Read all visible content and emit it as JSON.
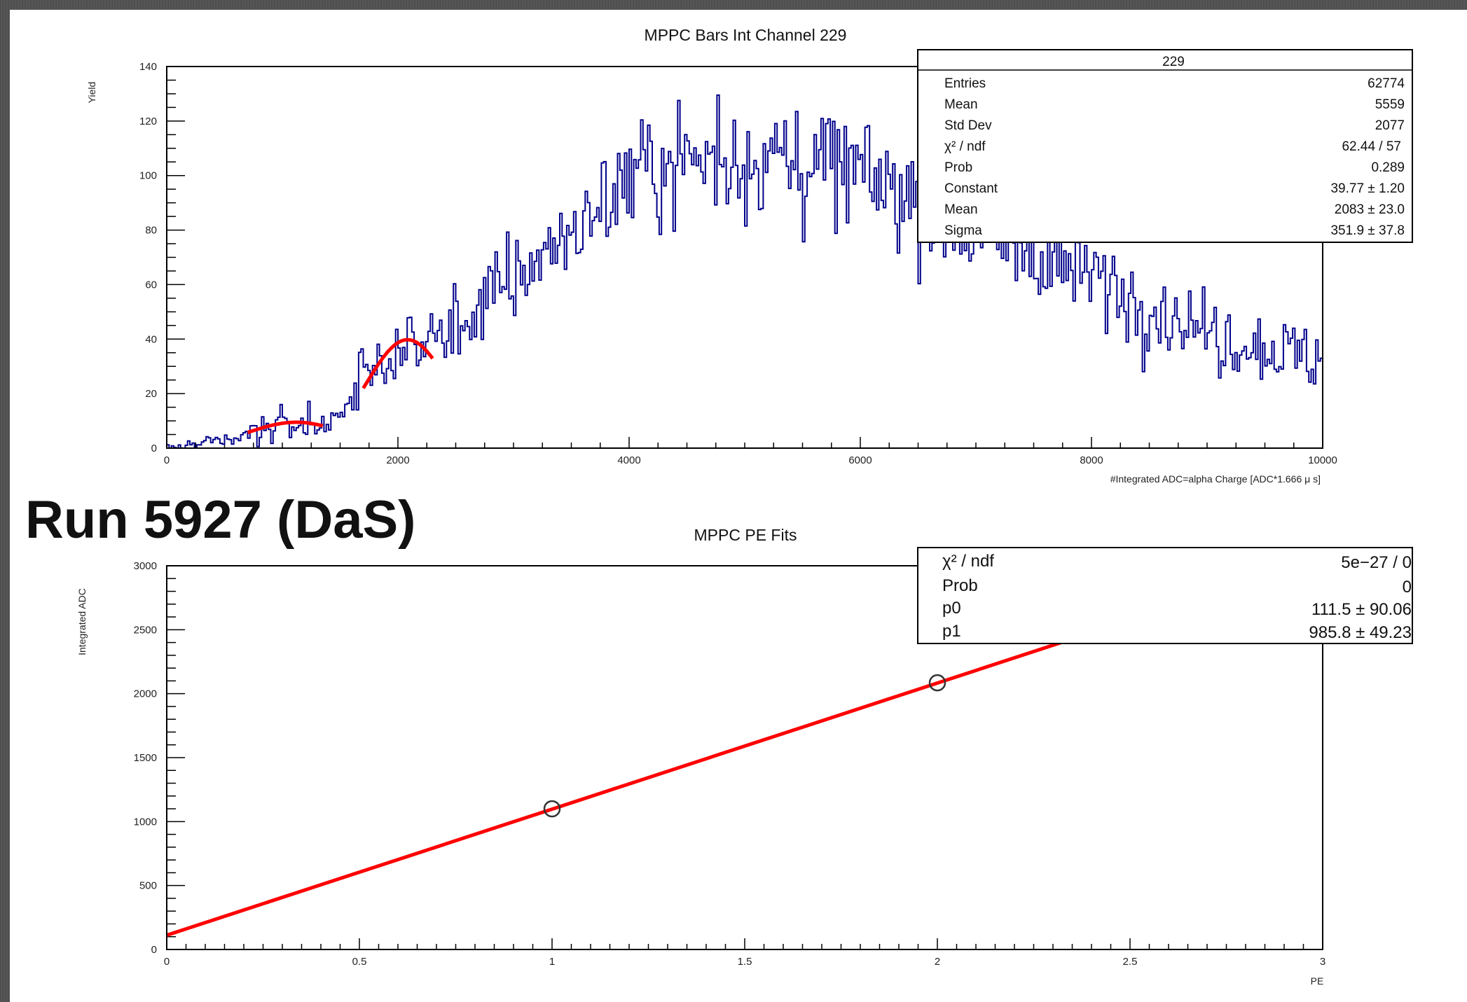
{
  "run_label": "Run 5927 (DaS)",
  "chart_data": [
    {
      "type": "histogram",
      "title": "MPPC Bars Int Channel 229",
      "xlabel": "#Integrated ADC=alpha Charge [ADC*1.666 μ s]",
      "ylabel": "Yield",
      "xlim": [
        0,
        10000
      ],
      "ylim": [
        0,
        140
      ],
      "x_ticks": [
        "0",
        "2000",
        "4000",
        "6000",
        "8000",
        "10000"
      ],
      "y_ticks": [
        "0",
        "20",
        "40",
        "60",
        "80",
        "100",
        "120",
        "140"
      ],
      "series_color": "#00008b",
      "fit_color": "#ff0000",
      "bin_width": 20,
      "envelope": [
        [
          0,
          0
        ],
        [
          300,
          1
        ],
        [
          600,
          3
        ],
        [
          900,
          8
        ],
        [
          1200,
          9
        ],
        [
          1400,
          8
        ],
        [
          1500,
          15
        ],
        [
          1700,
          25
        ],
        [
          2000,
          36
        ],
        [
          2300,
          40
        ],
        [
          2600,
          47
        ],
        [
          3000,
          62
        ],
        [
          3500,
          80
        ],
        [
          3800,
          90
        ],
        [
          4000,
          100
        ],
        [
          4400,
          105
        ],
        [
          4800,
          107
        ],
        [
          5200,
          107
        ],
        [
          5600,
          104
        ],
        [
          6000,
          100
        ],
        [
          6400,
          93
        ],
        [
          6800,
          85
        ],
        [
          7200,
          78
        ],
        [
          7600,
          70
        ],
        [
          8000,
          63
        ],
        [
          8400,
          55
        ],
        [
          8800,
          46
        ],
        [
          9200,
          40
        ],
        [
          9600,
          36
        ],
        [
          10000,
          33
        ]
      ],
      "fits": [
        {
          "constant": 9.5,
          "mean": 1120,
          "sigma": 420,
          "range": [
            700,
            1350
          ]
        },
        {
          "constant": 39.77,
          "mean": 2083,
          "sigma": 351.9,
          "range": [
            1700,
            2300
          ]
        }
      ],
      "stats_box": {
        "title": "229",
        "rows": [
          {
            "label": "Entries",
            "value": "62774"
          },
          {
            "label": "Mean",
            "value": "5559"
          },
          {
            "label": "Std Dev",
            "value": "2077"
          },
          {
            "label": "χ² / ndf",
            "value": "62.44 / 57"
          },
          {
            "label": "Prob",
            "value": "0.289"
          },
          {
            "label": "Constant",
            "value": "39.77  ± 1.20"
          },
          {
            "label": "Mean",
            "value": "2083  ± 23.0"
          },
          {
            "label": "Sigma",
            "value": "351.9  ± 37.8"
          }
        ]
      }
    },
    {
      "type": "scatter",
      "title": "MPPC PE Fits",
      "xlabel": "PE",
      "ylabel": "Integrated ADC",
      "xlim": [
        0,
        3
      ],
      "ylim": [
        0,
        3000
      ],
      "x_ticks": [
        "0",
        "0.5",
        "1",
        "1.5",
        "2",
        "2.5",
        "3"
      ],
      "y_ticks": [
        "0",
        "500",
        "1000",
        "1500",
        "2000",
        "2500",
        "3000"
      ],
      "points": [
        {
          "x": 1,
          "y": 1100
        },
        {
          "x": 2,
          "y": 2085
        }
      ],
      "fit_line": {
        "p0": 111.5,
        "p1": 985.8,
        "range": [
          0,
          2.93
        ],
        "color": "#ff0000"
      },
      "stats_box": {
        "rows": [
          {
            "label": "χ² / ndf",
            "value": "5e−27 / 0"
          },
          {
            "label": "Prob",
            "value": "0"
          },
          {
            "label": "p0",
            "value": "111.5 ± 90.06"
          },
          {
            "label": "p1",
            "value": "985.8 ± 49.23"
          }
        ]
      }
    }
  ]
}
